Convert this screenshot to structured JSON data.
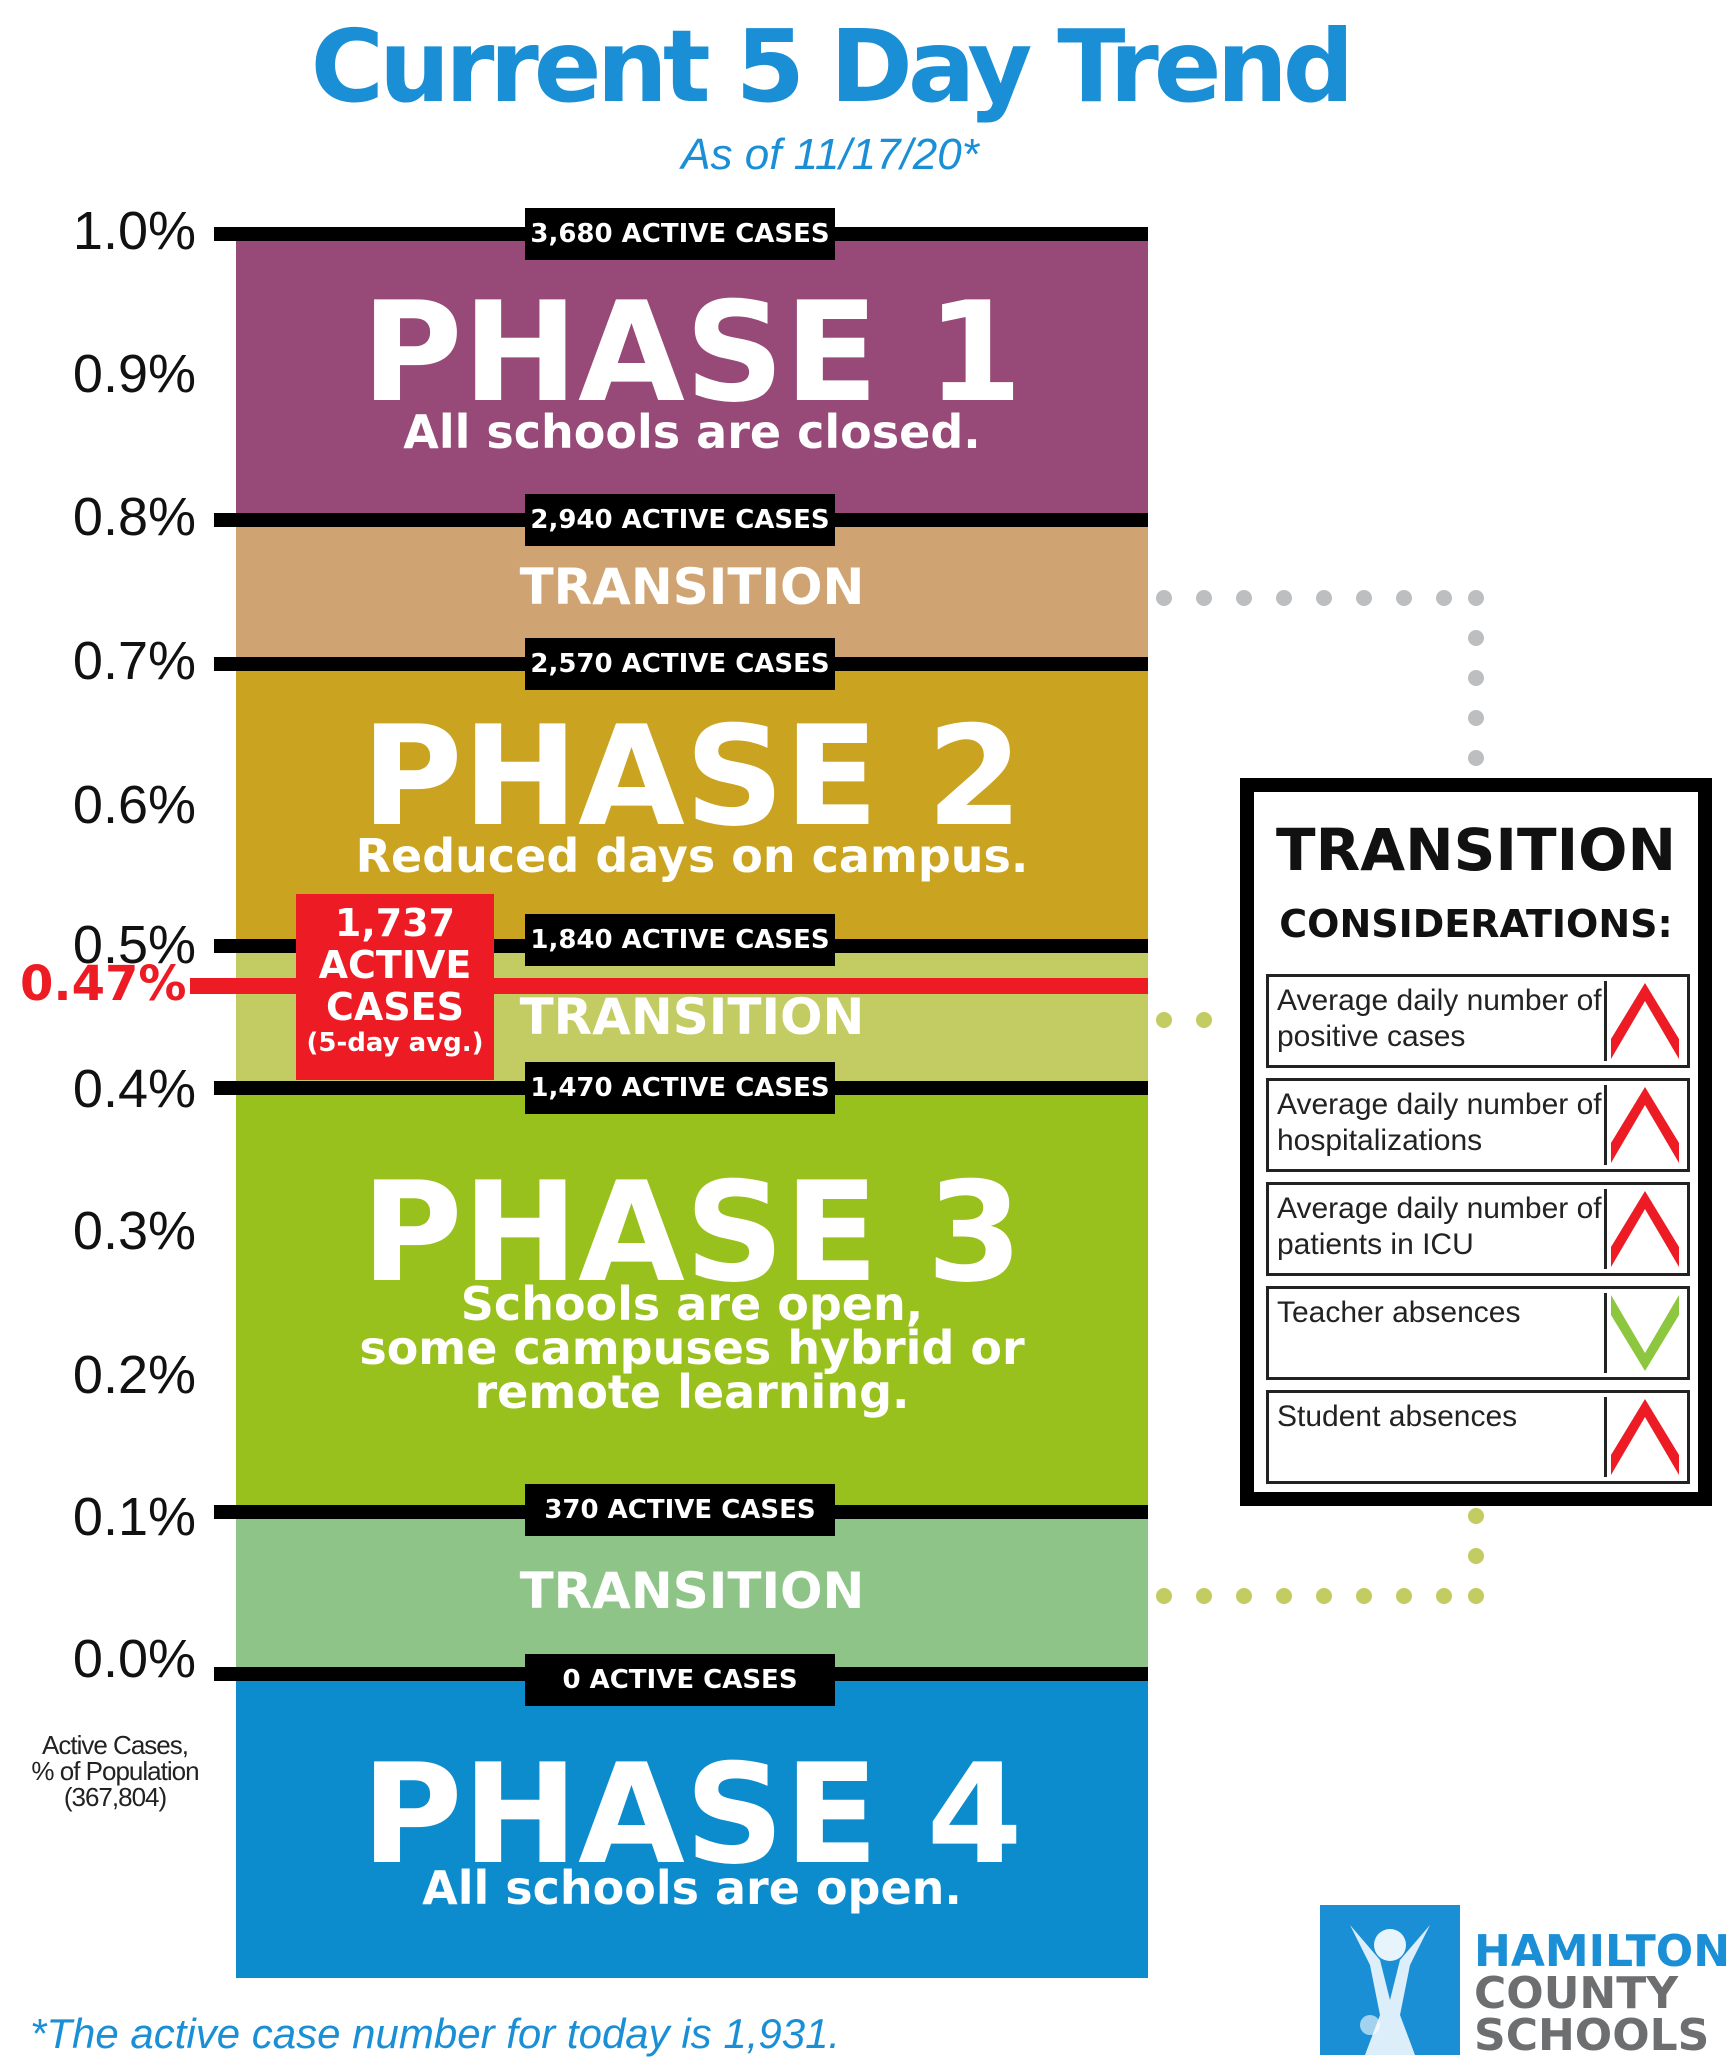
{
  "header": {
    "title": "Current 5 Day Trend",
    "subtitle": "As of 11/17/20*"
  },
  "y_axis": {
    "ticks": [
      "1.0%",
      "0.9%",
      "0.8%",
      "0.7%",
      "0.6%",
      "0.5%",
      "0.4%",
      "0.3%",
      "0.2%",
      "0.1%",
      "0.0%"
    ],
    "caption": [
      "Active Cases,",
      "% of Population",
      "(367,804)"
    ]
  },
  "thresholds": [
    "3,680 ACTIVE CASES",
    "2,940 ACTIVE CASES",
    "2,570 ACTIVE CASES",
    "1,840 ACTIVE CASES",
    "1,470 ACTIVE CASES",
    "370 ACTIVE CASES",
    "0 ACTIVE CASES"
  ],
  "phases": {
    "phase1": {
      "title": "PHASE 1",
      "desc": [
        "All schools are closed."
      ],
      "color": "#974a78"
    },
    "transition_top": {
      "label": "TRANSITION",
      "color": "#cfa472"
    },
    "phase2": {
      "title": "PHASE 2",
      "desc": [
        "Reduced days on campus."
      ],
      "color": "#caa321"
    },
    "transition_mid": {
      "label": "TRANSITION",
      "color": "#c3cb63"
    },
    "phase3": {
      "title": "PHASE 3",
      "desc": [
        "Schools are open,",
        "some campuses hybrid or",
        "remote learning."
      ],
      "color": "#99c11e"
    },
    "transition_low": {
      "label": "TRANSITION",
      "color": "#8ec487"
    },
    "phase4": {
      "title": "PHASE 4",
      "desc": [
        "All schools are open."
      ],
      "color": "#0d8ccd"
    }
  },
  "current": {
    "value_label": "0.47%",
    "value": 0.47,
    "callout": [
      "1,737",
      "ACTIVE",
      "CASES",
      "(5-day avg.)"
    ],
    "color": "#ed1c24"
  },
  "considerations": {
    "title": "TRANSITION",
    "subtitle": "CONSIDERATIONS:",
    "rows": [
      {
        "text": "Average daily number of positive cases",
        "trend": "up"
      },
      {
        "text": "Average daily number of hospitalizations",
        "trend": "up"
      },
      {
        "text": "Average daily number of patients in ICU",
        "trend": "up"
      },
      {
        "text": "Teacher absences",
        "trend": "down"
      },
      {
        "text": "Student absences",
        "trend": "up"
      }
    ],
    "up_color": "#ed1c24",
    "down_color": "#8dc63f"
  },
  "footnote": "*The active case number for today is 1,931.",
  "logo": {
    "lines": [
      "HAMILTON",
      "COUNTY",
      "SCHOOLS"
    ],
    "color": "#1a8fd6",
    "text_color_secondary": "#6d6e70"
  }
}
